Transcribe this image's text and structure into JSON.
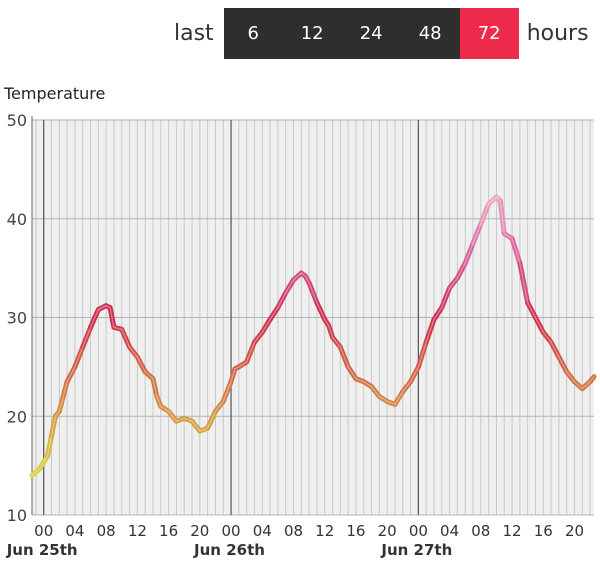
{
  "range_selector": {
    "prefix": "last",
    "suffix": "hours",
    "options": [
      "6",
      "12",
      "24",
      "48",
      "72"
    ],
    "selected": "72",
    "active_color": "#ee2b4d",
    "bar_color": "#2e2e2e"
  },
  "chart_data": {
    "type": "line",
    "ylabel": "Temperature",
    "ylim": [
      10,
      50
    ],
    "yticks": [
      "10",
      "20",
      "30",
      "40",
      "50"
    ],
    "x_unit": "hours since Jun 25th 00:00",
    "xlim": [
      -1.5,
      70.5
    ],
    "xticks": [
      {
        "h": 0,
        "label": "00"
      },
      {
        "h": 4,
        "label": "04"
      },
      {
        "h": 8,
        "label": "08"
      },
      {
        "h": 12,
        "label": "12"
      },
      {
        "h": 16,
        "label": "16"
      },
      {
        "h": 20,
        "label": "20"
      },
      {
        "h": 24,
        "label": "00"
      },
      {
        "h": 28,
        "label": "04"
      },
      {
        "h": 32,
        "label": "08"
      },
      {
        "h": 36,
        "label": "12"
      },
      {
        "h": 40,
        "label": "16"
      },
      {
        "h": 44,
        "label": "20"
      },
      {
        "h": 48,
        "label": "00"
      },
      {
        "h": 52,
        "label": "04"
      },
      {
        "h": 56,
        "label": "08"
      },
      {
        "h": 60,
        "label": "12"
      },
      {
        "h": 64,
        "label": "16"
      },
      {
        "h": 68,
        "label": "20"
      }
    ],
    "day_labels": [
      {
        "h": 0,
        "label": "Jun 25th"
      },
      {
        "h": 24,
        "label": "Jun 26th"
      },
      {
        "h": 48,
        "label": "Jun 27th"
      }
    ],
    "grid": true,
    "color_scale": {
      "low": "#d8d83a",
      "mid": "#cc2a4a",
      "high": "#eaa6c4"
    },
    "series": [
      {
        "values": [
          [
            -1.5,
            14.0
          ],
          [
            -0.5,
            14.7
          ],
          [
            0.5,
            16.0
          ],
          [
            1.0,
            18.0
          ],
          [
            1.5,
            20.0
          ],
          [
            2.0,
            20.5
          ],
          [
            2.5,
            22.0
          ],
          [
            3.0,
            23.5
          ],
          [
            4.0,
            25.0
          ],
          [
            5.0,
            27.0
          ],
          [
            6.0,
            29.0
          ],
          [
            7.0,
            30.8
          ],
          [
            8.0,
            31.2
          ],
          [
            8.5,
            31.0
          ],
          [
            9.0,
            29.0
          ],
          [
            10.0,
            28.8
          ],
          [
            11.0,
            27.0
          ],
          [
            12.0,
            26.0
          ],
          [
            13.0,
            24.5
          ],
          [
            14.0,
            23.8
          ],
          [
            14.5,
            22.0
          ],
          [
            15.0,
            21.0
          ],
          [
            16.0,
            20.5
          ],
          [
            17.0,
            19.5
          ],
          [
            18.0,
            19.8
          ],
          [
            19.0,
            19.5
          ],
          [
            20.0,
            18.5
          ],
          [
            21.0,
            18.8
          ],
          [
            22.0,
            20.5
          ],
          [
            23.0,
            21.5
          ],
          [
            24.0,
            23.5
          ],
          [
            24.5,
            24.8
          ],
          [
            25.0,
            25.0
          ],
          [
            26.0,
            25.5
          ],
          [
            27.0,
            27.5
          ],
          [
            28.0,
            28.5
          ],
          [
            29.0,
            29.8
          ],
          [
            30.0,
            31.0
          ],
          [
            31.0,
            32.5
          ],
          [
            32.0,
            33.8
          ],
          [
            33.0,
            34.5
          ],
          [
            33.5,
            34.2
          ],
          [
            34.0,
            33.5
          ],
          [
            35.0,
            31.5
          ],
          [
            36.0,
            29.8
          ],
          [
            36.5,
            29.2
          ],
          [
            37.0,
            28.0
          ],
          [
            38.0,
            27.0
          ],
          [
            39.0,
            25.0
          ],
          [
            40.0,
            23.8
          ],
          [
            41.0,
            23.5
          ],
          [
            42.0,
            23.0
          ],
          [
            43.0,
            22.0
          ],
          [
            44.0,
            21.5
          ],
          [
            45.0,
            21.2
          ],
          [
            46.0,
            22.5
          ],
          [
            47.0,
            23.5
          ],
          [
            48.0,
            25.0
          ],
          [
            49.0,
            27.5
          ],
          [
            50.0,
            29.8
          ],
          [
            51.0,
            31.0
          ],
          [
            52.0,
            33.0
          ],
          [
            53.0,
            34.0
          ],
          [
            54.0,
            35.5
          ],
          [
            55.0,
            37.5
          ],
          [
            56.0,
            39.5
          ],
          [
            57.0,
            41.5
          ],
          [
            58.0,
            42.2
          ],
          [
            58.5,
            41.8
          ],
          [
            59.0,
            38.5
          ],
          [
            60.0,
            38.0
          ],
          [
            61.0,
            35.5
          ],
          [
            62.0,
            31.5
          ],
          [
            63.0,
            30.0
          ],
          [
            64.0,
            28.5
          ],
          [
            65.0,
            27.5
          ],
          [
            66.0,
            26.0
          ],
          [
            67.0,
            24.5
          ],
          [
            68.0,
            23.5
          ],
          [
            69.0,
            22.8
          ],
          [
            70.0,
            23.5
          ],
          [
            70.5,
            24.0
          ]
        ]
      }
    ]
  }
}
